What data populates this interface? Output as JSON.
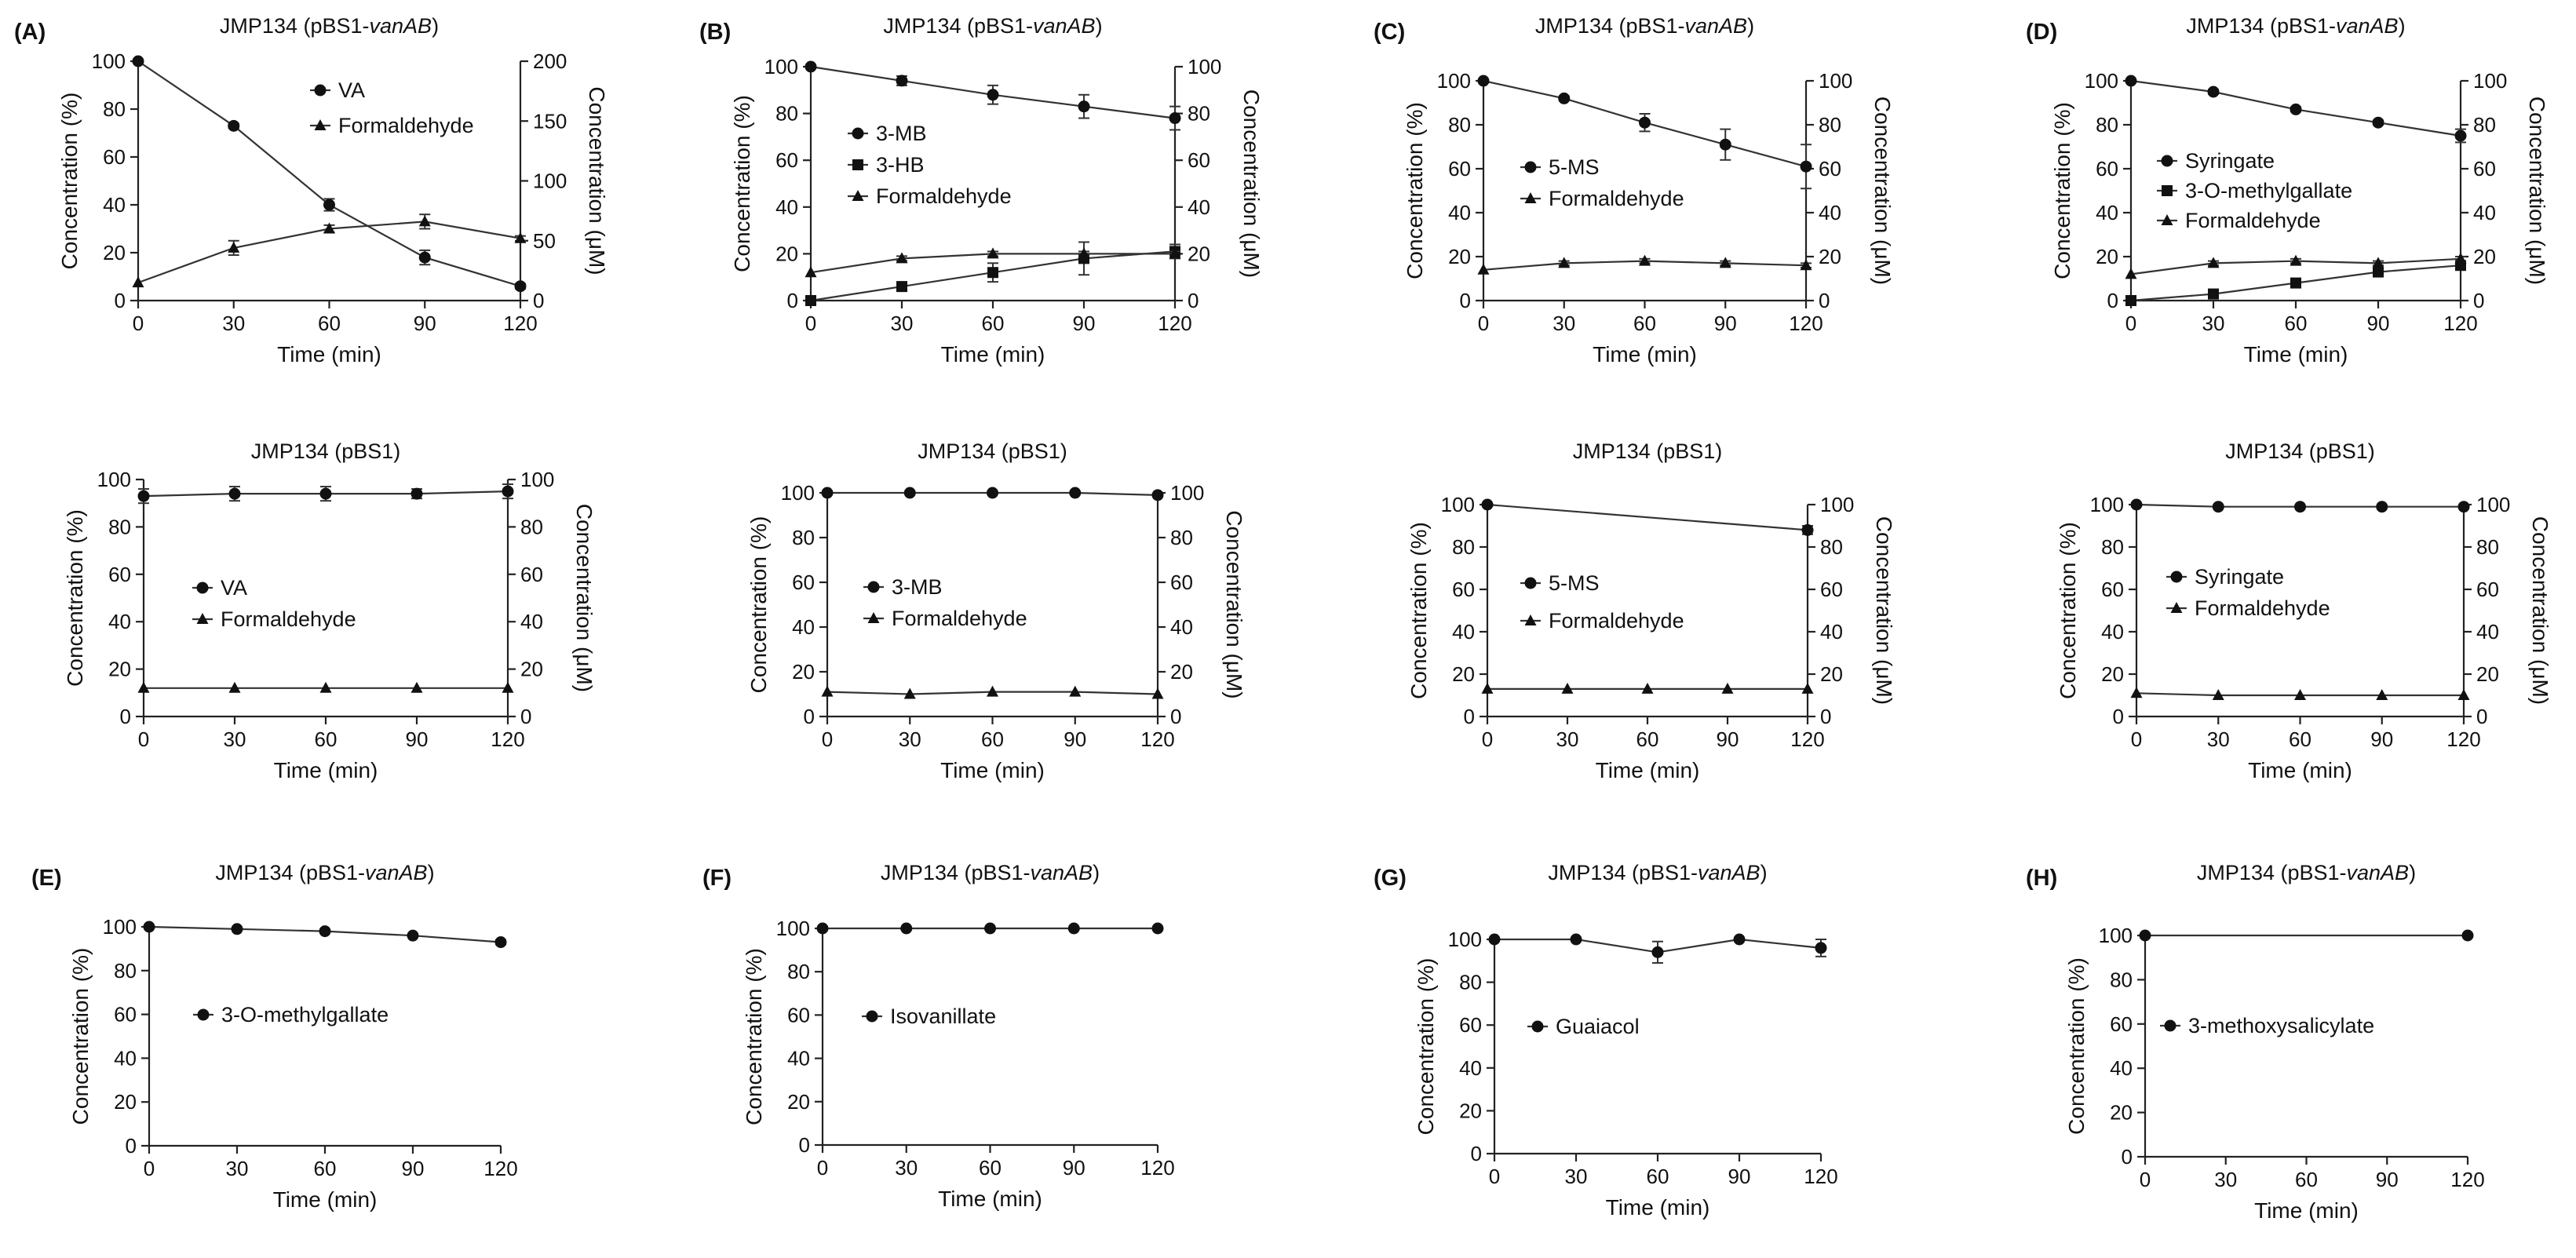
{
  "figure": {
    "background": "#ffffff",
    "ink": "#111111"
  },
  "chart_data": [
    {
      "panel": "(A)",
      "title_prefix": "JMP134 (pBS1-",
      "title_italic": "vanAB",
      "title_suffix": ")",
      "type": "line",
      "xlabel": "Time (min)",
      "ylabel": "Concentration (%)",
      "ylabel_right": "Concentration (μM)",
      "x": [
        0,
        30,
        60,
        90,
        120
      ],
      "xlim": [
        0,
        120
      ],
      "xticks": [
        "0",
        "30",
        "60",
        "90",
        "120"
      ],
      "ylim": [
        0,
        100
      ],
      "yticks": [
        "0",
        "20",
        "40",
        "60",
        "80",
        "100"
      ],
      "ylim_right": [
        0,
        200
      ],
      "yticks_right": [
        "0",
        "50",
        "100",
        "150",
        "200"
      ],
      "series": [
        {
          "name": "VA",
          "marker": "circle",
          "axis": "left",
          "values": [
            100,
            73,
            40,
            18,
            6
          ],
          "errors": [
            0,
            1,
            2.5,
            3,
            1
          ]
        },
        {
          "name": "Formaldehyde",
          "marker": "triangle",
          "axis": "right",
          "values": [
            15,
            44,
            60,
            66,
            52
          ],
          "errors": [
            0,
            6,
            3,
            6,
            2
          ]
        }
      ]
    },
    {
      "panel": "(B)",
      "title_prefix": "JMP134 (pBS1-",
      "title_italic": "vanAB",
      "title_suffix": ")",
      "type": "line",
      "xlabel": "Time (min)",
      "ylabel": "Concentration (%)",
      "ylabel_right": "Concentration (μM)",
      "x": [
        0,
        30,
        60,
        90,
        120
      ],
      "xlim": [
        0,
        120
      ],
      "xticks": [
        "0",
        "30",
        "60",
        "90",
        "120"
      ],
      "ylim": [
        0,
        100
      ],
      "yticks": [
        "0",
        "20",
        "40",
        "60",
        "80",
        "100"
      ],
      "ylim_right": [
        0,
        100
      ],
      "yticks_right": [
        "0",
        "20",
        "40",
        "60",
        "80",
        "100"
      ],
      "series": [
        {
          "name": "3-MB",
          "marker": "circle",
          "axis": "left",
          "values": [
            100,
            94,
            88,
            83,
            78
          ],
          "errors": [
            0,
            2,
            4,
            5,
            5
          ]
        },
        {
          "name": "3-HB",
          "marker": "square",
          "axis": "left",
          "values": [
            0,
            6,
            12,
            18,
            21
          ],
          "errors": [
            0,
            1,
            4,
            7,
            3
          ]
        },
        {
          "name": "Formaldehyde",
          "marker": "triangle",
          "axis": "right",
          "values": [
            12,
            18,
            20,
            20,
            20
          ],
          "errors": [
            0,
            1,
            1,
            1,
            1
          ]
        }
      ]
    },
    {
      "panel": "(C)",
      "title_prefix": "JMP134 (pBS1-",
      "title_italic": "vanAB",
      "title_suffix": ")",
      "type": "line",
      "xlabel": "Time (min)",
      "ylabel": "Concentration (%)",
      "ylabel_right": "Concentration (μM)",
      "x": [
        0,
        30,
        60,
        90,
        120
      ],
      "xlim": [
        0,
        120
      ],
      "xticks": [
        "0",
        "30",
        "60",
        "90",
        "120"
      ],
      "ylim": [
        0,
        100
      ],
      "yticks": [
        "0",
        "20",
        "40",
        "60",
        "80",
        "100"
      ],
      "ylim_right": [
        0,
        100
      ],
      "yticks_right": [
        "0",
        "20",
        "40",
        "60",
        "80",
        "100"
      ],
      "series": [
        {
          "name": "5-MS",
          "marker": "circle",
          "axis": "left",
          "values": [
            100,
            92,
            81,
            71,
            61
          ],
          "errors": [
            0,
            1,
            4,
            7,
            10
          ]
        },
        {
          "name": "Formaldehyde",
          "marker": "triangle",
          "axis": "right",
          "values": [
            14,
            17,
            18,
            17,
            16
          ],
          "errors": [
            0,
            1,
            1,
            1,
            1
          ]
        }
      ]
    },
    {
      "panel": "(D)",
      "title_prefix": "JMP134 (pBS1-",
      "title_italic": "vanAB",
      "title_suffix": ")",
      "type": "line",
      "xlabel": "Time (min)",
      "ylabel": "Concentration (%)",
      "ylabel_right": "Concentration (μM)",
      "x": [
        0,
        30,
        60,
        90,
        120
      ],
      "xlim": [
        0,
        120
      ],
      "xticks": [
        "0",
        "30",
        "60",
        "90",
        "120"
      ],
      "ylim": [
        0,
        100
      ],
      "yticks": [
        "0",
        "20",
        "40",
        "60",
        "80",
        "100"
      ],
      "ylim_right": [
        0,
        100
      ],
      "yticks_right": [
        "0",
        "20",
        "40",
        "60",
        "80",
        "100"
      ],
      "series": [
        {
          "name": "Syringate",
          "marker": "circle",
          "axis": "left",
          "values": [
            100,
            95,
            87,
            81,
            75
          ],
          "errors": [
            0,
            1,
            1,
            1,
            3
          ]
        },
        {
          "name": "3-O-methylgallate",
          "marker": "square",
          "axis": "left",
          "values": [
            0,
            3,
            8,
            13,
            16
          ],
          "errors": [
            0,
            1,
            1,
            1,
            2
          ]
        },
        {
          "name": "Formaldehyde",
          "marker": "triangle",
          "axis": "right",
          "values": [
            12,
            17,
            18,
            17,
            19
          ],
          "errors": [
            0,
            1,
            1,
            1,
            1
          ]
        }
      ]
    },
    {
      "panel": "",
      "title_prefix": "JMP134 (pBS1)",
      "title_italic": "",
      "title_suffix": "",
      "type": "line",
      "xlabel": "Time (min)",
      "ylabel": "Concentration (%)",
      "ylabel_right": "Concentration (μM)",
      "x": [
        0,
        30,
        60,
        90,
        120
      ],
      "xlim": [
        0,
        120
      ],
      "xticks": [
        "0",
        "30",
        "60",
        "90",
        "120"
      ],
      "ylim": [
        0,
        100
      ],
      "yticks": [
        "0",
        "20",
        "40",
        "60",
        "80",
        "100"
      ],
      "ylim_right": [
        0,
        100
      ],
      "yticks_right": [
        "0",
        "20",
        "40",
        "60",
        "80",
        "100"
      ],
      "series": [
        {
          "name": "VA",
          "marker": "circle",
          "axis": "left",
          "values": [
            93,
            94,
            94,
            94,
            95
          ],
          "errors": [
            3,
            3,
            3,
            2,
            3
          ]
        },
        {
          "name": "Formaldehyde",
          "marker": "triangle",
          "axis": "right",
          "values": [
            12,
            12,
            12,
            12,
            12
          ],
          "errors": [
            0,
            0,
            0,
            0,
            0
          ]
        }
      ]
    },
    {
      "panel": "",
      "title_prefix": "JMP134 (pBS1)",
      "title_italic": "",
      "title_suffix": "",
      "type": "line",
      "xlabel": "Time (min)",
      "ylabel": "Concentration (%)",
      "ylabel_right": "Concentration (μM)",
      "x": [
        0,
        30,
        60,
        90,
        120
      ],
      "xlim": [
        0,
        120
      ],
      "xticks": [
        "0",
        "30",
        "60",
        "90",
        "120"
      ],
      "ylim": [
        0,
        100
      ],
      "yticks": [
        "0",
        "20",
        "40",
        "60",
        "80",
        "100"
      ],
      "ylim_right": [
        0,
        100
      ],
      "yticks_right": [
        "0",
        "20",
        "40",
        "60",
        "80",
        "100"
      ],
      "series": [
        {
          "name": "3-MB",
          "marker": "circle",
          "axis": "left",
          "values": [
            100,
            100,
            100,
            100,
            99
          ],
          "errors": [
            0,
            0,
            0,
            0,
            0
          ]
        },
        {
          "name": "Formaldehyde",
          "marker": "triangle",
          "axis": "right",
          "values": [
            11,
            10,
            11,
            11,
            10
          ],
          "errors": [
            0,
            0,
            0,
            0,
            0
          ]
        }
      ]
    },
    {
      "panel": "",
      "title_prefix": "JMP134 (pBS1)",
      "title_italic": "",
      "title_suffix": "",
      "type": "line",
      "xlabel": "Time (min)",
      "ylabel": "Concentration (%)",
      "ylabel_right": "Concentration (μM)",
      "x": [
        0,
        120
      ],
      "xlim": [
        0,
        120
      ],
      "xticks": [
        "0",
        "30",
        "60",
        "90",
        "120"
      ],
      "ylim": [
        0,
        100
      ],
      "yticks": [
        "0",
        "20",
        "40",
        "60",
        "80",
        "100"
      ],
      "ylim_right": [
        0,
        100
      ],
      "yticks_right": [
        "0",
        "20",
        "40",
        "60",
        "80",
        "100"
      ],
      "series": [
        {
          "name": "5-MS",
          "marker": "circle",
          "axis": "left",
          "x": [
            0,
            120
          ],
          "values": [
            100,
            88
          ],
          "errors": [
            0,
            2
          ]
        },
        {
          "name": "Formaldehyde",
          "marker": "triangle",
          "axis": "right",
          "x": [
            0,
            30,
            60,
            90,
            120
          ],
          "values": [
            13,
            13,
            13,
            13,
            13
          ],
          "errors": [
            0,
            0,
            0,
            0,
            0
          ]
        }
      ]
    },
    {
      "panel": "",
      "title_prefix": "JMP134 (pBS1)",
      "title_italic": "",
      "title_suffix": "",
      "type": "line",
      "xlabel": "Time (min)",
      "ylabel": "Concentration (%)",
      "ylabel_right": "Concentration (μM)",
      "x": [
        0,
        30,
        60,
        90,
        120
      ],
      "xlim": [
        0,
        120
      ],
      "xticks": [
        "0",
        "30",
        "60",
        "90",
        "120"
      ],
      "ylim": [
        0,
        100
      ],
      "yticks": [
        "0",
        "20",
        "40",
        "60",
        "80",
        "100"
      ],
      "ylim_right": [
        0,
        100
      ],
      "yticks_right": [
        "0",
        "20",
        "40",
        "60",
        "80",
        "100"
      ],
      "series": [
        {
          "name": "Syringate",
          "marker": "circle",
          "axis": "left",
          "values": [
            100,
            99,
            99,
            99,
            99
          ],
          "errors": [
            0,
            0,
            0,
            0,
            0
          ]
        },
        {
          "name": "Formaldehyde",
          "marker": "triangle",
          "axis": "right",
          "values": [
            11,
            10,
            10,
            10,
            10
          ],
          "errors": [
            0,
            0,
            0,
            0,
            0
          ]
        }
      ]
    },
    {
      "panel": "(E)",
      "title_prefix": "JMP134 (pBS1-",
      "title_italic": "vanAB",
      "title_suffix": ")",
      "type": "line",
      "xlabel": "Time (min)",
      "ylabel": "Concentration (%)",
      "ylabel_right": "",
      "x": [
        0,
        30,
        60,
        90,
        120
      ],
      "xlim": [
        0,
        120
      ],
      "xticks": [
        "0",
        "30",
        "60",
        "90",
        "120"
      ],
      "ylim": [
        0,
        100
      ],
      "yticks": [
        "0",
        "20",
        "40",
        "60",
        "80",
        "100"
      ],
      "series": [
        {
          "name": "3-O-methylgallate",
          "marker": "circle",
          "axis": "left",
          "values": [
            100,
            99,
            98,
            96,
            93
          ],
          "errors": [
            0,
            0,
            0,
            0,
            1
          ]
        }
      ]
    },
    {
      "panel": "(F)",
      "title_prefix": "JMP134 (pBS1-",
      "title_italic": "vanAB",
      "title_suffix": ")",
      "type": "line",
      "xlabel": "Time (min)",
      "ylabel": "Concentration (%)",
      "ylabel_right": "",
      "x": [
        0,
        30,
        60,
        90,
        120
      ],
      "xlim": [
        0,
        120
      ],
      "xticks": [
        "0",
        "30",
        "60",
        "90",
        "120"
      ],
      "ylim": [
        0,
        100
      ],
      "yticks": [
        "0",
        "20",
        "40",
        "60",
        "80",
        "100"
      ],
      "series": [
        {
          "name": "Isovanillate",
          "marker": "circle",
          "axis": "left",
          "values": [
            100,
            100,
            100,
            100,
            100
          ],
          "errors": [
            0,
            0,
            0,
            0,
            0
          ]
        }
      ]
    },
    {
      "panel": "(G)",
      "title_prefix": "JMP134 (pBS1-",
      "title_italic": "vanAB",
      "title_suffix": ")",
      "type": "line",
      "xlabel": "Time (min)",
      "ylabel": "Concentration (%)",
      "ylabel_right": "",
      "x": [
        0,
        30,
        60,
        90,
        120
      ],
      "xlim": [
        0,
        120
      ],
      "xticks": [
        "0",
        "30",
        "60",
        "90",
        "120"
      ],
      "ylim": [
        0,
        100
      ],
      "yticks": [
        "0",
        "20",
        "40",
        "60",
        "80",
        "100"
      ],
      "series": [
        {
          "name": "Guaiacol",
          "marker": "circle",
          "axis": "left",
          "values": [
            100,
            100,
            94,
            100,
            96
          ],
          "errors": [
            0,
            0,
            5,
            0,
            4
          ]
        }
      ]
    },
    {
      "panel": "(H)",
      "title_prefix": "JMP134 (pBS1-",
      "title_italic": "vanAB",
      "title_suffix": ")",
      "type": "line",
      "xlabel": "Time (min)",
      "ylabel": "Concentration (%)",
      "ylabel_right": "",
      "x": [
        0,
        120
      ],
      "xlim": [
        0,
        120
      ],
      "xticks": [
        "0",
        "30",
        "60",
        "90",
        "120"
      ],
      "ylim": [
        0,
        100
      ],
      "yticks": [
        "0",
        "20",
        "40",
        "60",
        "80",
        "100"
      ],
      "series": [
        {
          "name": "3-methoxysalicylate",
          "marker": "circle",
          "axis": "left",
          "values": [
            100,
            100
          ],
          "errors": [
            0,
            0
          ]
        }
      ]
    }
  ]
}
